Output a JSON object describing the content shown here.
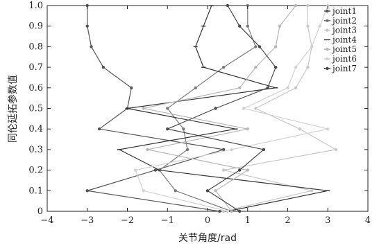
{
  "chart_data": {
    "type": "line",
    "title": "",
    "xlabel": "关节角度/rad",
    "ylabel": "同伦延拓参数值",
    "xlim": [
      -4,
      4
    ],
    "ylim": [
      0,
      1
    ],
    "xticks": [
      "−4",
      "−3",
      "−2",
      "−1",
      "0",
      "1",
      "2",
      "3",
      "4"
    ],
    "yticks": [
      "0",
      "0.1",
      "0.2",
      "0.3",
      "0.4",
      "0.5",
      "0.6",
      "0.7",
      "0.8",
      "0.9",
      "1.0"
    ],
    "grid": false,
    "legend": "top-right",
    "y": [
      0,
      0.1,
      0.2,
      0.3,
      0.4,
      0.5,
      0.6,
      0.7,
      0.8,
      0.9,
      1.0
    ],
    "series": [
      {
        "name": "joint1",
        "color": "#555555",
        "marker": "dot",
        "x": [
          0.3,
          -3.0,
          -1.3,
          0.4,
          -2.7,
          -2.0,
          -1.9,
          -2.6,
          -2.9,
          -3.0,
          -3.0
        ]
      },
      {
        "name": "joint2",
        "color": "#7a7a7a",
        "marker": "dot",
        "x": [
          0.6,
          -0.8,
          -1.2,
          -0.5,
          -0.6,
          -1.0,
          -0.3,
          0.4,
          1.2,
          1.0,
          1.0
        ]
      },
      {
        "name": "joint3",
        "color": "#c8c8c8",
        "marker": "dot",
        "x": [
          0.4,
          2.6,
          0.4,
          3.2,
          2.3,
          1.2,
          2.2,
          2.5,
          2.6,
          2.5,
          2.5
        ]
      },
      {
        "name": "joint4",
        "color": "#333333",
        "marker": "dash",
        "x": [
          0.5,
          3.0,
          -1.2,
          -2.2,
          0.7,
          -2.0,
          1.7,
          -0.1,
          -0.3,
          -0.1,
          0.1
        ]
      },
      {
        "name": "joint5",
        "color": "#b8b8b8",
        "marker": "dot",
        "x": [
          0.6,
          0.2,
          1.0,
          -1.5,
          1.0,
          -1.6,
          0.8,
          1.2,
          1.7,
          1.8,
          2.2
        ]
      },
      {
        "name": "joint6",
        "color": "#d2d2d2",
        "marker": "dot",
        "x": [
          0.5,
          -1.6,
          -1.8,
          0.6,
          3.0,
          0.9,
          2.0,
          2.2,
          2.6,
          2.8,
          3.0
        ]
      },
      {
        "name": "joint7",
        "color": "#484848",
        "marker": "dot",
        "x": [
          0.8,
          0.0,
          0.8,
          1.4,
          -1.0,
          0.2,
          1.5,
          1.7,
          1.3,
          0.8,
          0.5
        ]
      }
    ]
  }
}
